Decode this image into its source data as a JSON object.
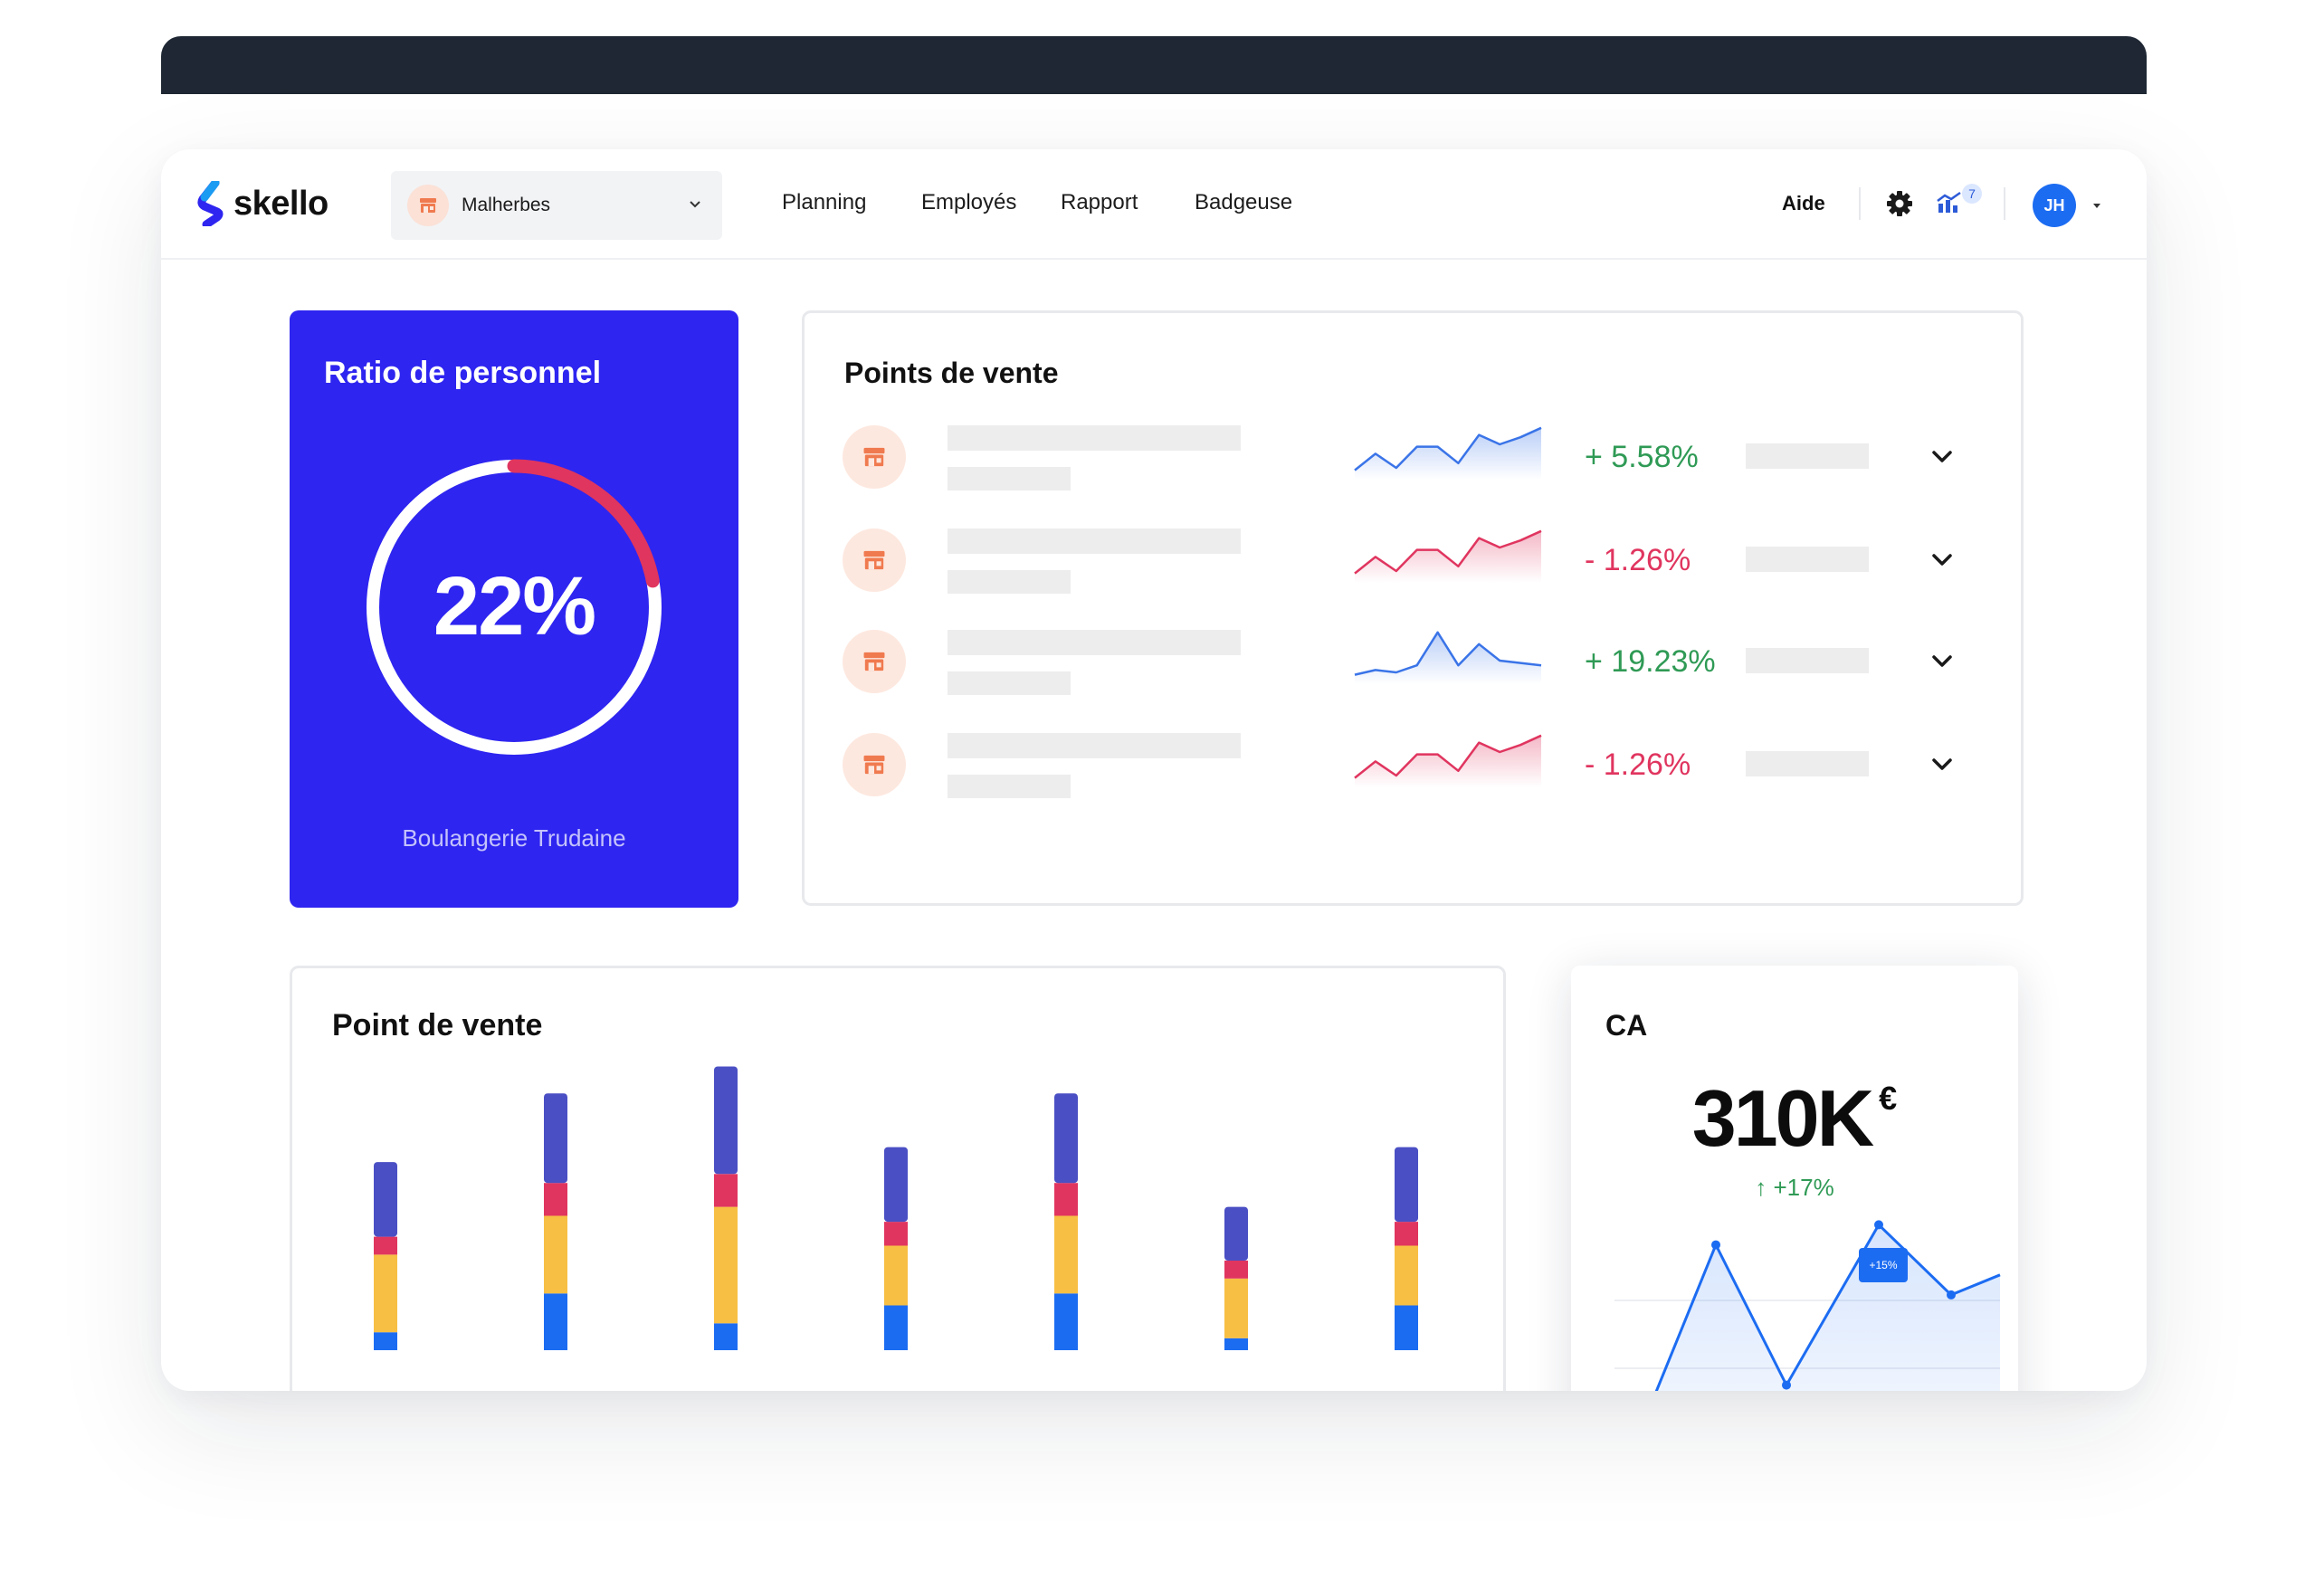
{
  "app": {
    "logo_text": "skello"
  },
  "nav": {
    "store": "Malherbes",
    "links": [
      "Planning",
      "Employés",
      "Rapport",
      "Badgeuse"
    ],
    "help": "Aide",
    "notification_count": "7",
    "user_initials": "JH"
  },
  "ratio_card": {
    "title": "Ratio de personnel",
    "value": "22%",
    "ratio": 0.22,
    "store": "Boulangerie Trudaine",
    "arc_color": "#e0355f",
    "background": "#2e25f0"
  },
  "points_de_vente": {
    "title": "Points de vente",
    "rows": [
      {
        "change": "+ 5.58%",
        "trend": "up",
        "color": "#2f9a55",
        "spark_color": "#3a74e8",
        "spark": [
          4,
          11,
          5,
          14,
          14,
          7,
          19,
          15,
          18,
          22
        ]
      },
      {
        "change": "- 1.26%",
        "trend": "down",
        "color": "#e0355f",
        "spark_color": "#e0355f",
        "spark": [
          4,
          11,
          5,
          14,
          14,
          7,
          19,
          15,
          18,
          22
        ]
      },
      {
        "change": "+ 19.23%",
        "trend": "up",
        "color": "#2f9a55",
        "spark_color": "#3a74e8",
        "spark": [
          4,
          6,
          5,
          8,
          22,
          8,
          17,
          10,
          9,
          8
        ]
      },
      {
        "change": "- 1.26%",
        "trend": "down",
        "color": "#e0355f",
        "spark_color": "#e0355f",
        "spark": [
          4,
          11,
          5,
          14,
          14,
          7,
          19,
          15,
          18,
          22
        ]
      }
    ]
  },
  "chart_data": [
    {
      "type": "bar",
      "title": "Point de vente",
      "stacked": true,
      "categories": [
        "",
        "",
        "",
        "",
        "",
        "",
        ""
      ],
      "series": [
        {
          "color": "#1c6cf2",
          "values": [
            12,
            38,
            18,
            30,
            38,
            8,
            30
          ]
        },
        {
          "color": "#f7bf44",
          "values": [
            52,
            52,
            78,
            40,
            52,
            40,
            40
          ]
        },
        {
          "color": "#e0355f",
          "values": [
            12,
            22,
            22,
            16,
            22,
            12,
            16
          ]
        },
        {
          "color": "#4a4fc4",
          "values": [
            50,
            60,
            72,
            50,
            60,
            36,
            50
          ]
        }
      ],
      "ylim": [
        0,
        200
      ]
    },
    {
      "type": "line",
      "title": "CA",
      "x": [
        0,
        1,
        2,
        3,
        4,
        5,
        6
      ],
      "values": [
        0,
        10,
        3,
        8,
        11,
        7.5,
        8.5
      ],
      "color": "#1c6cf2",
      "ylim": [
        0,
        14
      ]
    }
  ],
  "ca_card": {
    "title": "CA",
    "value": "310K",
    "currency": "€",
    "change": "↑ +17%",
    "tag": "+15%"
  }
}
